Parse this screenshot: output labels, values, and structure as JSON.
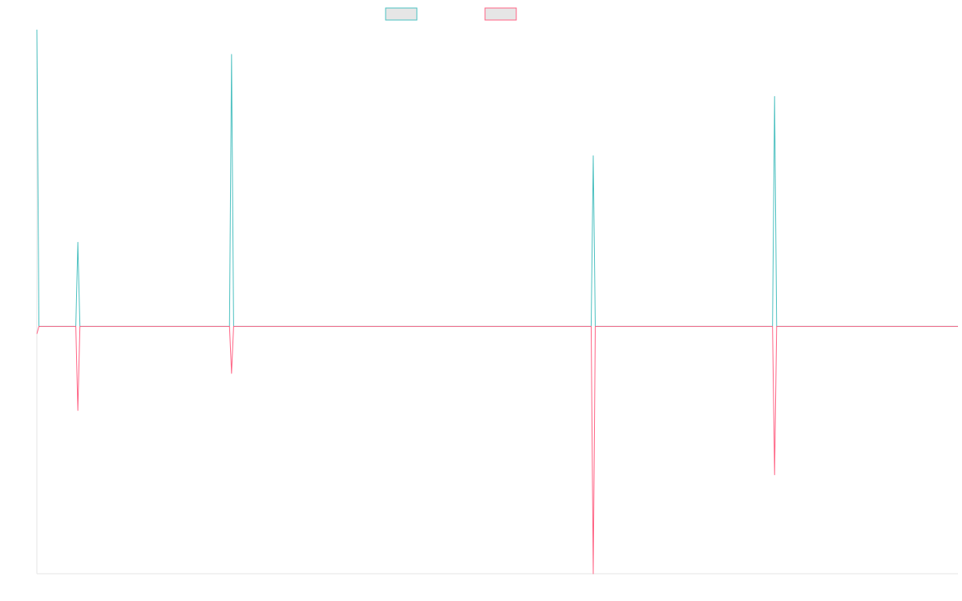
{
  "chart_data": {
    "type": "line",
    "x_count": 900,
    "ylim": [
      -1.0,
      1.2
    ],
    "grid": false,
    "legend_position": "top-center",
    "series": [
      {
        "color": "#4bc0c0",
        "values": [
          {
            "x": 0,
            "y": 1.2
          },
          {
            "x": 2,
            "y": 0
          },
          {
            "x": 38,
            "y": 0
          },
          {
            "x": 40,
            "y": 0.34
          },
          {
            "x": 42,
            "y": 0
          },
          {
            "x": 188,
            "y": 0
          },
          {
            "x": 190,
            "y": 1.1
          },
          {
            "x": 192,
            "y": 0
          },
          {
            "x": 541,
            "y": 0
          },
          {
            "x": 543,
            "y": 0.69
          },
          {
            "x": 545,
            "y": 0
          },
          {
            "x": 718,
            "y": 0
          },
          {
            "x": 720,
            "y": 0.93
          },
          {
            "x": 722,
            "y": 0
          },
          {
            "x": 899,
            "y": 0
          }
        ]
      },
      {
        "color": "#ff6384",
        "values": [
          {
            "x": 0,
            "y": -0.03
          },
          {
            "x": 2,
            "y": 0
          },
          {
            "x": 38,
            "y": 0
          },
          {
            "x": 40,
            "y": -0.34
          },
          {
            "x": 42,
            "y": 0
          },
          {
            "x": 188,
            "y": 0
          },
          {
            "x": 190,
            "y": -0.19
          },
          {
            "x": 192,
            "y": 0
          },
          {
            "x": 541,
            "y": 0
          },
          {
            "x": 543,
            "y": -1.0
          },
          {
            "x": 545,
            "y": 0
          },
          {
            "x": 718,
            "y": 0
          },
          {
            "x": 720,
            "y": -0.6
          },
          {
            "x": 722,
            "y": 0
          },
          {
            "x": 899,
            "y": 0
          }
        ]
      }
    ]
  }
}
